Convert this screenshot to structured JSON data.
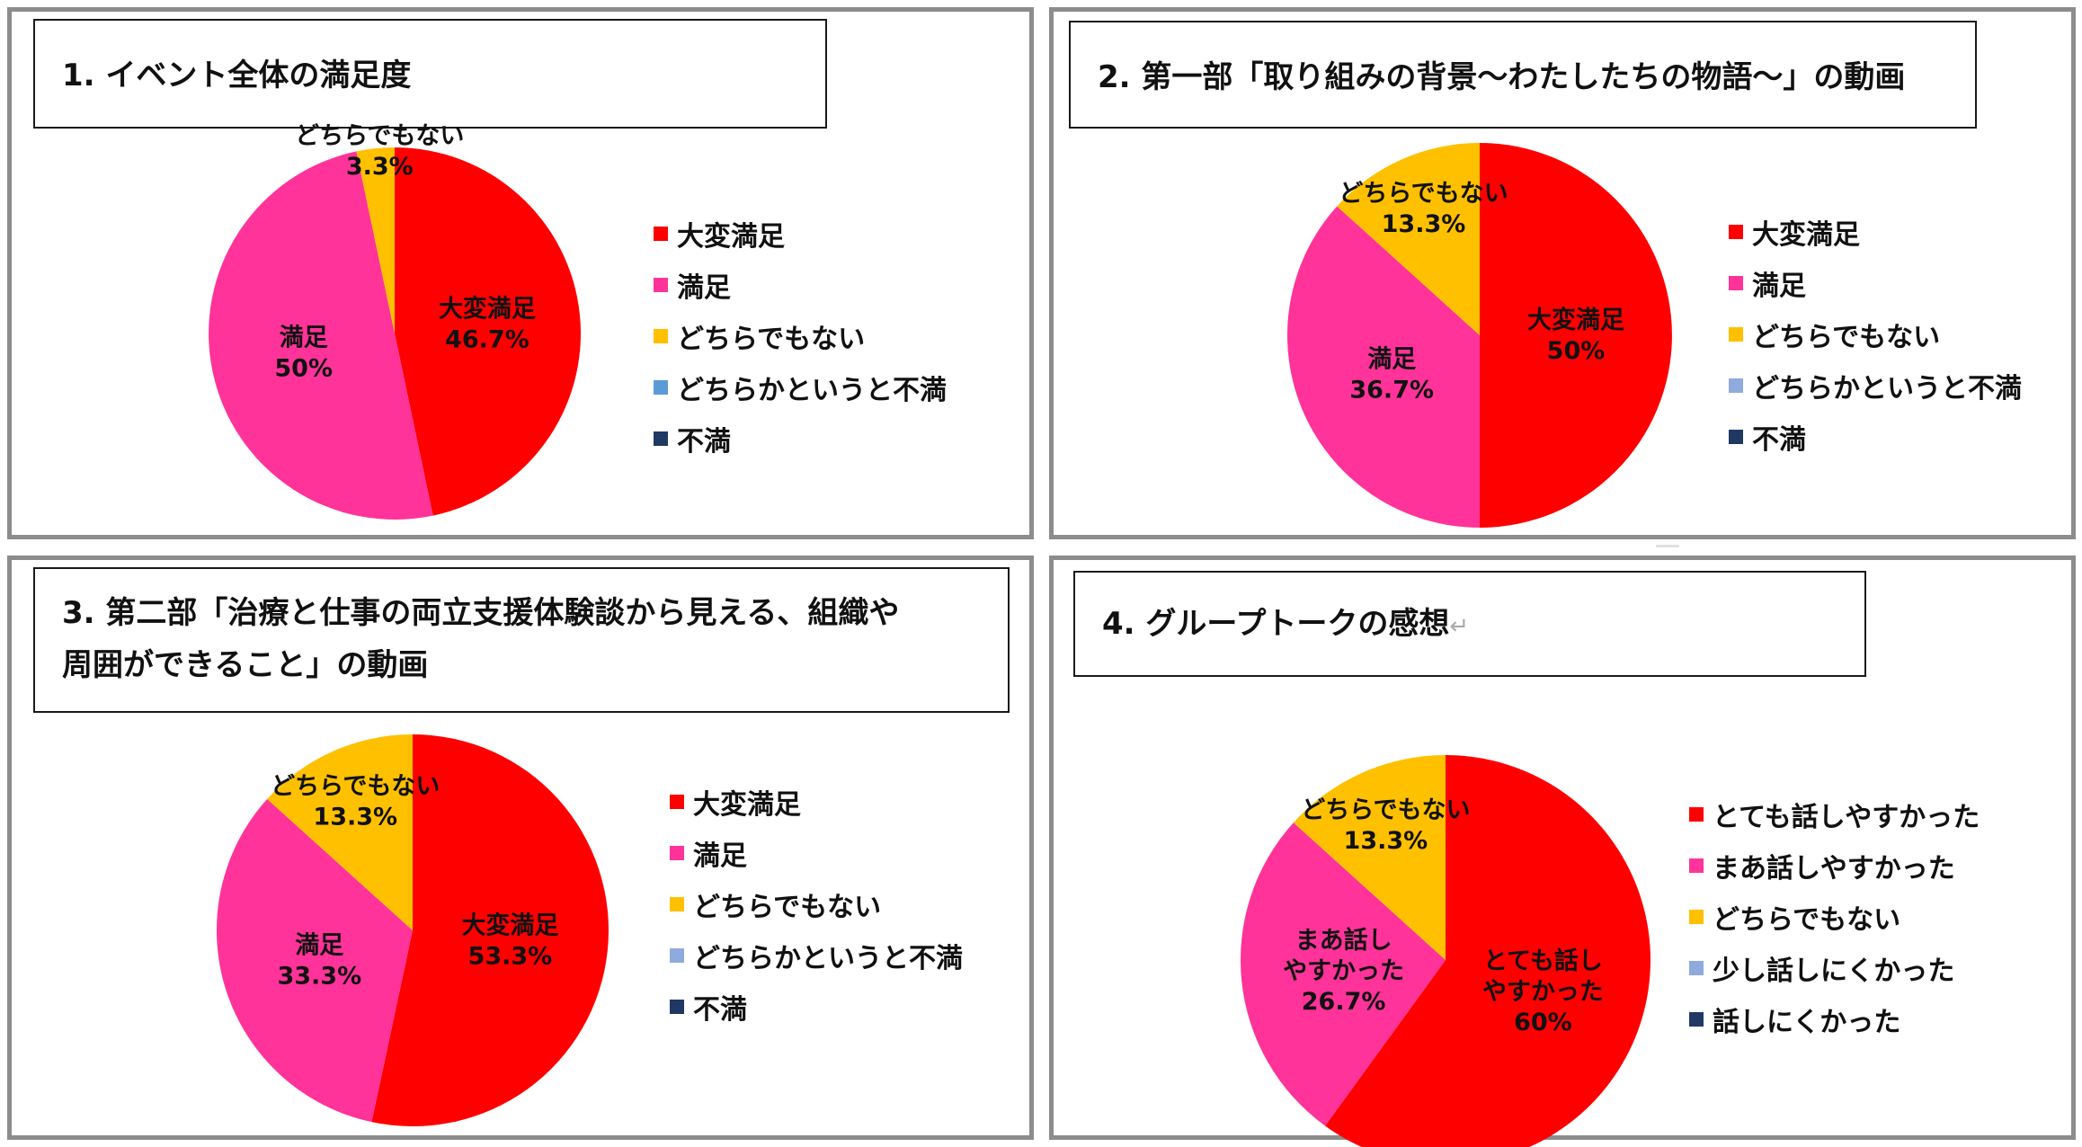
{
  "colors": {
    "very_satisfied": "#ff0000",
    "satisfied": "#ff3399",
    "neutral": "#ffc000",
    "somewhat_dissatisfied": "#8faadc",
    "dissatisfied": "#1f3864"
  },
  "chart_data": [
    {
      "type": "pie",
      "title_lines": [
        "1. イベント全体の満足度"
      ],
      "legend": [
        "大変満足",
        "満足",
        "どちらでもない",
        "どちらかというと不満",
        "不満"
      ],
      "series": [
        {
          "label": "大変満足",
          "value": 46.7,
          "display": "46.7%",
          "color": "#ff0000"
        },
        {
          "label": "満足",
          "value": 50,
          "display": "50%",
          "color": "#ff3399"
        },
        {
          "label": "どちらでもない",
          "value": 3.3,
          "display": "3.3%",
          "color": "#ffc000"
        },
        {
          "label": "どちらかというと不満",
          "value": 0,
          "display": "",
          "color": "#5b9bd5"
        },
        {
          "label": "不満",
          "value": 0,
          "display": "",
          "color": "#1f3864"
        }
      ]
    },
    {
      "type": "pie",
      "title_lines": [
        "2. 第一部「取り組みの背景～わたしたちの物語～」の動画"
      ],
      "legend": [
        "大変満足",
        "満足",
        "どちらでもない",
        "どちらかというと不満",
        "不満"
      ],
      "series": [
        {
          "label": "大変満足",
          "value": 50,
          "display": "50%",
          "color": "#ff0000"
        },
        {
          "label": "満足",
          "value": 36.7,
          "display": "36.7%",
          "color": "#ff3399"
        },
        {
          "label": "どちらでもない",
          "value": 13.3,
          "display": "13.3%",
          "color": "#ffc000"
        },
        {
          "label": "どちらかというと不満",
          "value": 0,
          "display": "",
          "color": "#8faadc"
        },
        {
          "label": "不満",
          "value": 0,
          "display": "",
          "color": "#1f3864"
        }
      ]
    },
    {
      "type": "pie",
      "title_lines": [
        "3. 第二部「治療と仕事の両立支援体験談から見える、組織や",
        "周囲ができること」の動画"
      ],
      "legend": [
        "大変満足",
        "満足",
        "どちらでもない",
        "どちらかというと不満",
        "不満"
      ],
      "series": [
        {
          "label": "大変満足",
          "value": 53.3,
          "display": "53.3%",
          "color": "#ff0000"
        },
        {
          "label": "満足",
          "value": 33.3,
          "display": "33.3%",
          "color": "#ff3399"
        },
        {
          "label": "どちらでもない",
          "value": 13.3,
          "display": "13.3%",
          "color": "#ffc000"
        },
        {
          "label": "どちらかというと不満",
          "value": 0,
          "display": "",
          "color": "#8faadc"
        },
        {
          "label": "不満",
          "value": 0,
          "display": "",
          "color": "#1f3864"
        }
      ]
    },
    {
      "type": "pie",
      "title_lines": [
        "4. グループトークの感想"
      ],
      "title_suffix": "↵",
      "legend": [
        "とても話しやすかった",
        "まあ話しやすかった",
        "どちらでもない",
        "少し話しにくかった",
        "話しにくかった"
      ],
      "series": [
        {
          "label": "とても話しやすかった",
          "value": 60,
          "display": "60%",
          "color": "#ff0000"
        },
        {
          "label": "まあ話しやすかった",
          "value": 26.7,
          "display": "26.7%",
          "color": "#ff3399"
        },
        {
          "label": "どちらでもない",
          "value": 13.3,
          "display": "13.3%",
          "color": "#ffc000"
        },
        {
          "label": "少し話しにくかった",
          "value": 0,
          "display": "",
          "color": "#8faadc"
        },
        {
          "label": "話しにくかった",
          "value": 0,
          "display": "",
          "color": "#1f3864"
        }
      ],
      "slice_label_lines": [
        [
          "とても話し",
          "やすかった"
        ],
        [
          "まあ話し",
          "やすかった"
        ],
        [
          "どちらでもない"
        ]
      ]
    }
  ]
}
